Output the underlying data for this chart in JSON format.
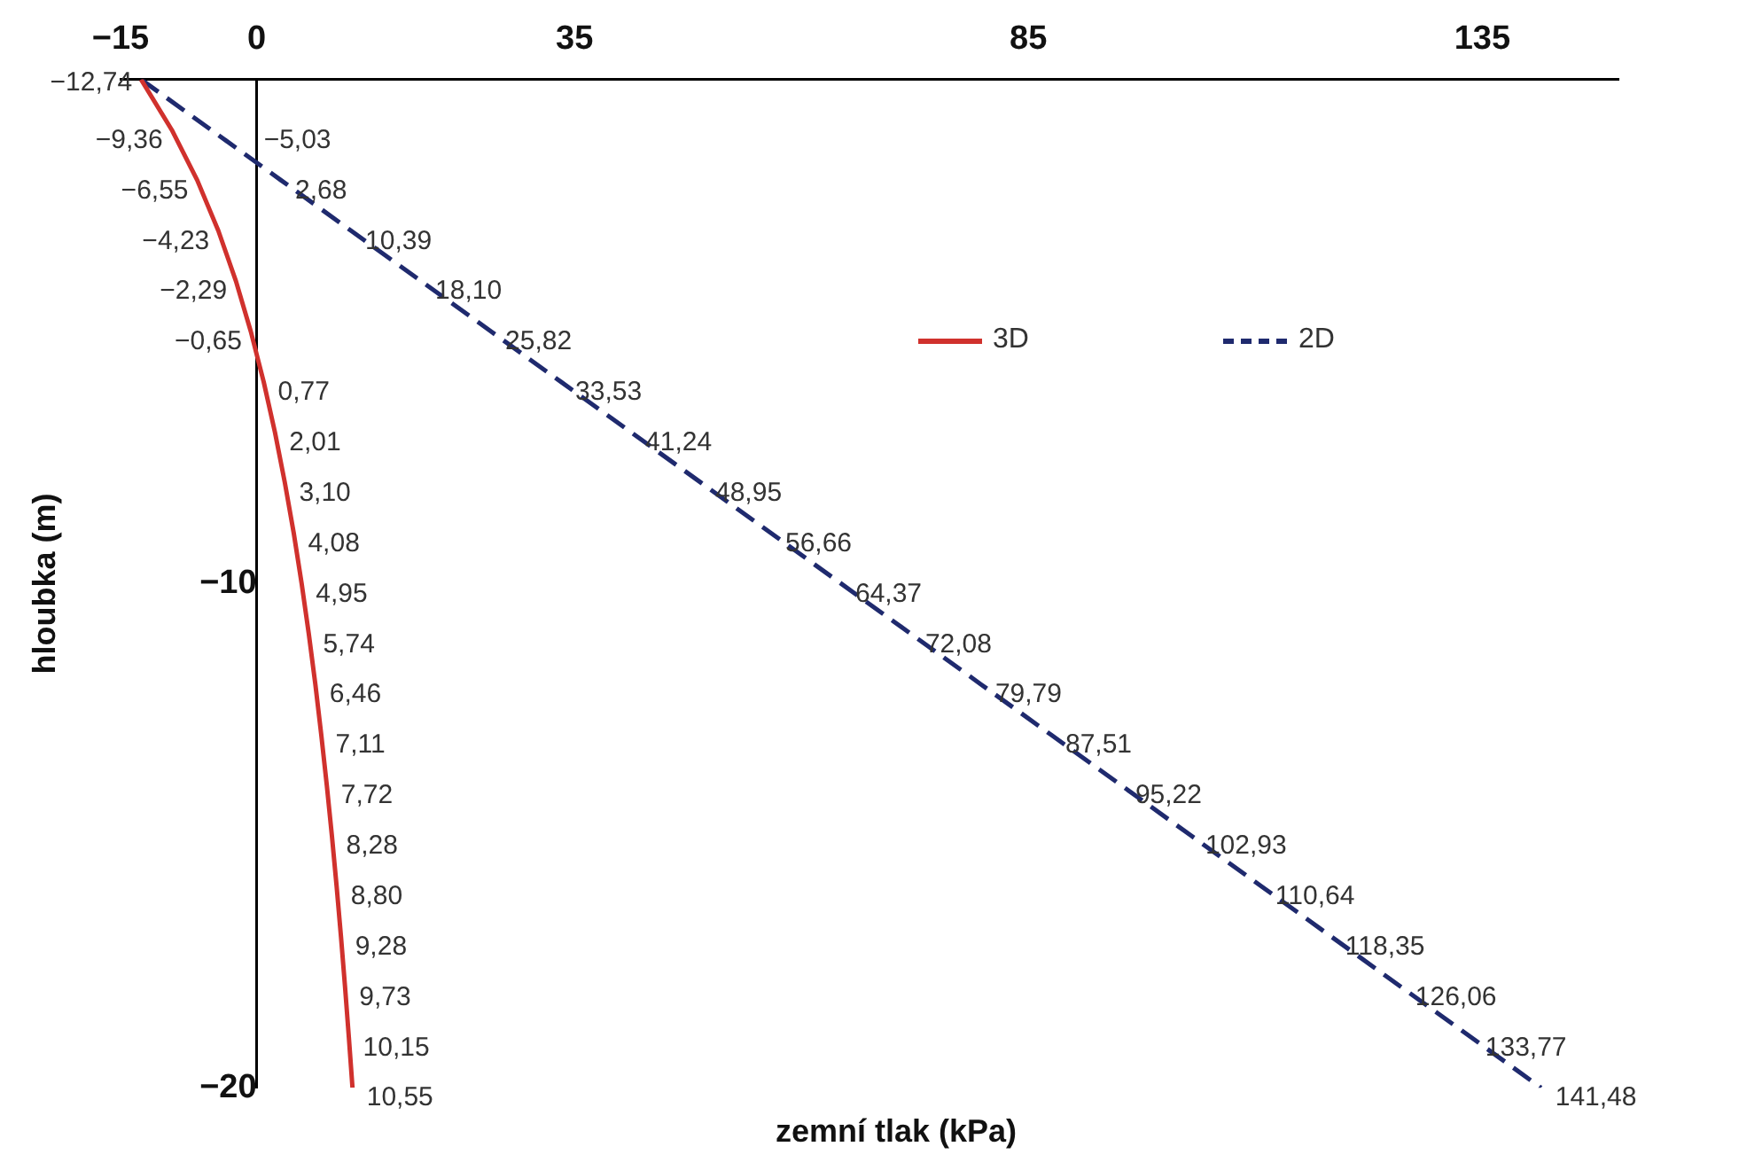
{
  "chart_data": {
    "type": "line",
    "orientation": "horizontal",
    "xlabel": "zemní tlak (kPa)",
    "ylabel": "hloubka (m)",
    "xlim": [
      -15,
      150
    ],
    "xticks": [
      -15,
      0,
      35,
      85,
      135
    ],
    "ylim": [
      -20,
      0
    ],
    "yticks": [
      -10,
      -20
    ],
    "grid": false,
    "legend": "top right",
    "marker": "none",
    "series": [
      {
        "name": "3D",
        "color": "#d0312d",
        "line_style": "solid",
        "values": [
          -12.74,
          -9.36,
          -6.55,
          -4.23,
          -2.29,
          -0.65,
          0.77,
          2.01,
          3.1,
          4.08,
          4.95,
          5.74,
          6.46,
          7.11,
          7.72,
          8.28,
          8.8,
          9.28,
          9.73,
          10.15,
          10.55
        ],
        "x": [
          0,
          -1,
          -2,
          -3,
          -4,
          -5,
          -6,
          -7,
          -8,
          -9,
          -10,
          -11,
          -12,
          -13,
          -14,
          -15,
          -16,
          -17,
          -18,
          -19,
          -20
        ],
        "value_labels": [
          "−12,74",
          "−9,36",
          "−6,55",
          "−4,23",
          "−2,29",
          "−0,65",
          "0,77",
          "2,01",
          "3,10",
          "4,08",
          "4,95",
          "5,74",
          "6,46",
          "7,11",
          "7,72",
          "8,28",
          "8,80",
          "9,28",
          "9,73",
          "10,15",
          "10,55"
        ]
      },
      {
        "name": "2D",
        "color": "#1f2a6e",
        "line_style": "dashed",
        "values": [
          -12.74,
          -5.03,
          2.68,
          10.39,
          18.1,
          25.82,
          33.53,
          41.24,
          48.95,
          56.66,
          64.37,
          72.08,
          79.79,
          87.51,
          95.22,
          102.93,
          110.64,
          118.35,
          126.06,
          133.77,
          141.48
        ],
        "x": [
          0,
          -1,
          -2,
          -3,
          -4,
          -5,
          -6,
          -7,
          -8,
          -9,
          -10,
          -11,
          -12,
          -13,
          -14,
          -15,
          -16,
          -17,
          -18,
          -19,
          -20
        ],
        "value_labels": [
          null,
          "−5,03",
          "2,68",
          "10,39",
          "18,10",
          "25,82",
          "33,53",
          "41,24",
          "48,95",
          "56,66",
          "64,37",
          "72,08",
          "79,79",
          "87,51",
          "95,22",
          "102,93",
          "110,64",
          "118,35",
          "126,06",
          "133,77",
          "141,48"
        ]
      }
    ]
  }
}
